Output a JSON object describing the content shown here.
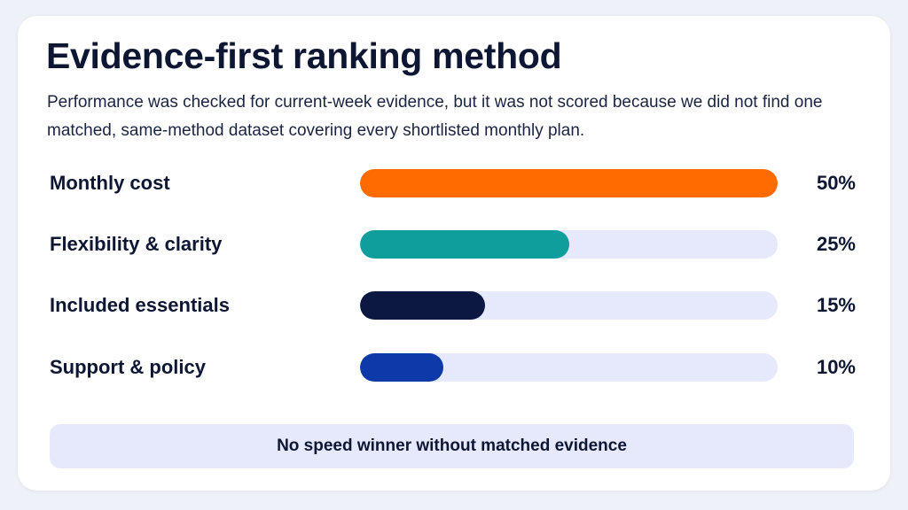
{
  "title": "Evidence-first ranking method",
  "subtitle": "Performance was checked for current-week evidence, but it was not scored because we did not find one matched, same-method dataset covering every shortlisted monthly plan.",
  "note": "No speed winner without matched evidence",
  "chart_data": {
    "type": "bar",
    "orientation": "horizontal",
    "title": "Evidence-first ranking method",
    "xlim": [
      0,
      50
    ],
    "grid": false,
    "categories": [
      "Monthly cost",
      "Flexibility & clarity",
      "Included essentials",
      "Support & policy"
    ],
    "values": [
      50,
      25,
      15,
      10
    ],
    "value_labels": [
      "50%",
      "25%",
      "15%",
      "10%"
    ],
    "colors": [
      "#ff6b00",
      "#0f9e9c",
      "#0c1742",
      "#0d3aa8"
    ],
    "track_color": "#e5e9fb"
  }
}
